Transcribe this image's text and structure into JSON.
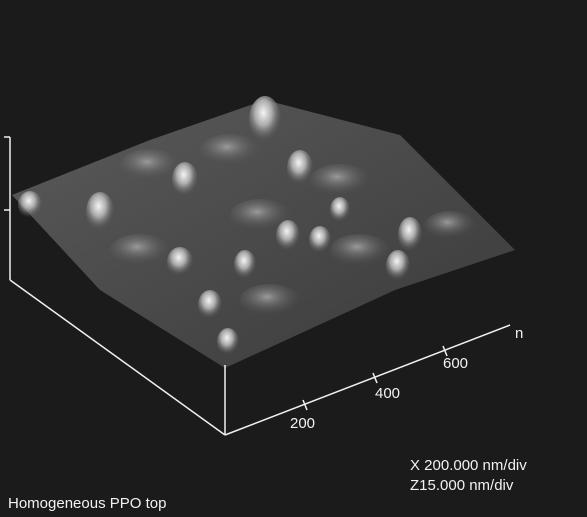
{
  "axis": {
    "unit_label": "n",
    "ticks": [
      "200",
      "400",
      "600"
    ]
  },
  "scale": {
    "x": "X 200.000 nm/div",
    "z": "Z15.000 nm/div"
  },
  "caption": "Homogeneous PPO top"
}
